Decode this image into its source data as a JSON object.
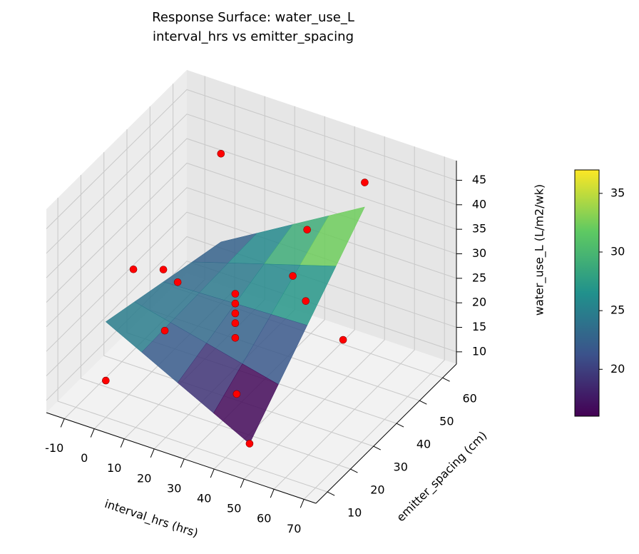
{
  "chart_data": {
    "type": "surface3d",
    "title": "Response Surface: water_use_L",
    "subtitle": "interval_hrs vs emitter_spacing",
    "xlabel": "interval_hrs (hrs)",
    "ylabel": "emitter_spacing (cm)",
    "zlabel": "water_use_L (L/m2/wk)",
    "xlim": [
      -16,
      74
    ],
    "ylim": [
      5,
      66
    ],
    "zlim": [
      7.5,
      49
    ],
    "xticks": [
      -10,
      0,
      10,
      20,
      30,
      40,
      50,
      60,
      70
    ],
    "yticks": [
      10,
      20,
      30,
      40,
      50,
      60
    ],
    "zticks": [
      10,
      15,
      20,
      25,
      30,
      35,
      40,
      45
    ],
    "grid": true,
    "surface": {
      "colormap": "viridis",
      "x": [
        0,
        12,
        24,
        36,
        48
      ],
      "y": [
        10,
        22.5,
        35,
        47.5,
        60
      ],
      "z": [
        [
          27,
          25.25,
          23.5,
          21.75,
          20
        ],
        [
          23.25,
          23.5,
          23.75,
          24,
          24.25
        ],
        [
          19.5,
          21.75,
          24,
          26.25,
          28.5
        ],
        [
          15.75,
          20,
          24.25,
          28.5,
          32.75
        ],
        [
          12,
          18.25,
          24.5,
          30.75,
          37
        ]
      ]
    },
    "scatter": {
      "color": "#ff0000",
      "x": [
        -10,
        0,
        0,
        0,
        12,
        24,
        24,
        24,
        24,
        24,
        24,
        36,
        36,
        48,
        48,
        48,
        60,
        24
      ],
      "y": [
        35,
        10,
        60,
        35,
        20,
        35,
        35,
        35,
        35,
        10,
        60,
        20,
        50,
        10,
        60,
        35,
        35,
        35
      ],
      "z": [
        24,
        15,
        38,
        26,
        23,
        24,
        26,
        22,
        20,
        40,
        18,
        15,
        20,
        12,
        42,
        44,
        24,
        17
      ]
    },
    "colorbar": {
      "vmin": 16,
      "vmax": 37,
      "ticks": [
        20,
        25,
        30,
        35
      ]
    }
  }
}
